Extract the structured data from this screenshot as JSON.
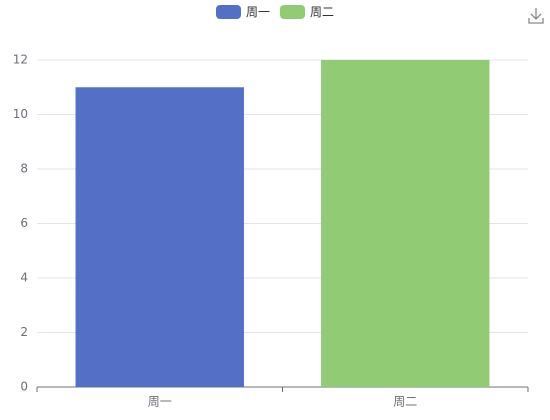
{
  "chart_data": {
    "type": "bar",
    "categories": [
      "周一",
      "周二"
    ],
    "values": [
      11,
      12
    ],
    "colors": [
      "#5470c6",
      "#91cc75"
    ],
    "ylim": [
      0,
      12
    ],
    "yticks": [
      0,
      2,
      4,
      6,
      8,
      10,
      12
    ],
    "grid": true,
    "legend": "top"
  }
}
